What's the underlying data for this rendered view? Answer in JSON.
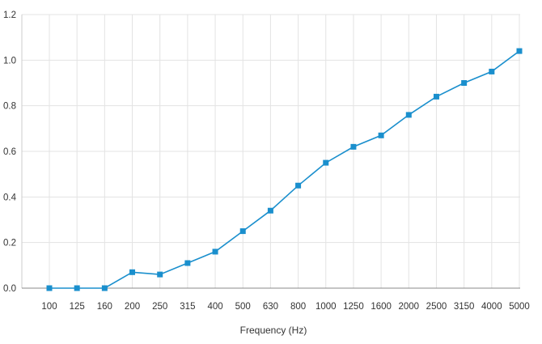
{
  "chart_data": {
    "type": "line",
    "title": "",
    "xlabel": "Frequency (Hz)",
    "ylabel": "",
    "categories": [
      "100",
      "125",
      "160",
      "200",
      "250",
      "315",
      "400",
      "500",
      "630",
      "800",
      "1000",
      "1250",
      "1600",
      "2000",
      "2500",
      "3150",
      "4000",
      "5000"
    ],
    "series": [
      {
        "values": [
          0.0,
          0.0,
          0.0,
          0.07,
          0.06,
          0.11,
          0.16,
          0.25,
          0.34,
          0.45,
          0.55,
          0.62,
          0.67,
          0.76,
          0.84,
          0.9,
          0.95,
          1.04
        ],
        "color": "#1a8fcd",
        "marker": "square"
      }
    ],
    "ylim": [
      0,
      1.2
    ],
    "yticks": [
      "0.0",
      "0.2",
      "0.4",
      "0.6",
      "0.8",
      "1.0",
      "1.2"
    ],
    "grid": true,
    "legend": "none"
  }
}
